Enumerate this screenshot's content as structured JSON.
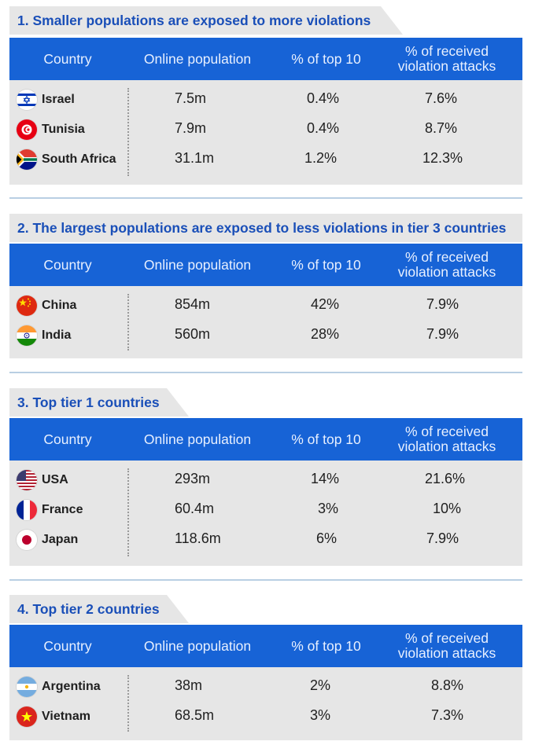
{
  "columns": {
    "country": "Country",
    "online_population": "Online population",
    "pct_top10": "% of top 10",
    "pct_received_line1": "% of received",
    "pct_received_line2": "violation attacks"
  },
  "sections": [
    {
      "title": "1. Smaller populations are exposed to more violations",
      "rows": [
        {
          "country": "Israel",
          "flag": "israel-flag-icon",
          "online_population": "7.5m",
          "pct_top10": "0.4%",
          "pct_received": "7.6%"
        },
        {
          "country": "Tunisia",
          "flag": "tunisia-flag-icon",
          "online_population": "7.9m",
          "pct_top10": "0.4%",
          "pct_received": "8.7%"
        },
        {
          "country": "South Africa",
          "flag": "south-africa-flag-icon",
          "online_population": "31.1m",
          "pct_top10": "1.2%",
          "pct_received": "12.3%"
        }
      ]
    },
    {
      "title": "2. The largest populations are exposed to less violations in tier 3 countries",
      "rows": [
        {
          "country": "China",
          "flag": "china-flag-icon",
          "online_population": "854m",
          "pct_top10": "42%",
          "pct_received": "7.9%"
        },
        {
          "country": "India",
          "flag": "india-flag-icon",
          "online_population": "560m",
          "pct_top10": "28%",
          "pct_received": "7.9%"
        }
      ]
    },
    {
      "title": "3. Top tier 1 countries",
      "rows": [
        {
          "country": "USA",
          "flag": "usa-flag-icon",
          "online_population": "293m",
          "pct_top10": "14%",
          "pct_received": "21.6%"
        },
        {
          "country": "France",
          "flag": "france-flag-icon",
          "online_population": "60.4m",
          "pct_top10": "3%",
          "pct_received": "10%"
        },
        {
          "country": "Japan",
          "flag": "japan-flag-icon",
          "online_population": "118.6m",
          "pct_top10": "6%",
          "pct_received": "7.9%"
        }
      ]
    },
    {
      "title": "4. Top tier 2 countries",
      "rows": [
        {
          "country": "Argentina",
          "flag": "argentina-flag-icon",
          "online_population": "38m",
          "pct_top10": "2%",
          "pct_received": "8.8%"
        },
        {
          "country": "Vietnam",
          "flag": "vietnam-flag-icon",
          "online_population": "68.5m",
          "pct_top10": "3%",
          "pct_received": "7.3%"
        }
      ]
    }
  ],
  "colors": {
    "header_blue": "#1763d6",
    "title_blue": "#1a4fb8",
    "panel_gray": "#e6e6e6",
    "separator": "#b9cfe3"
  }
}
